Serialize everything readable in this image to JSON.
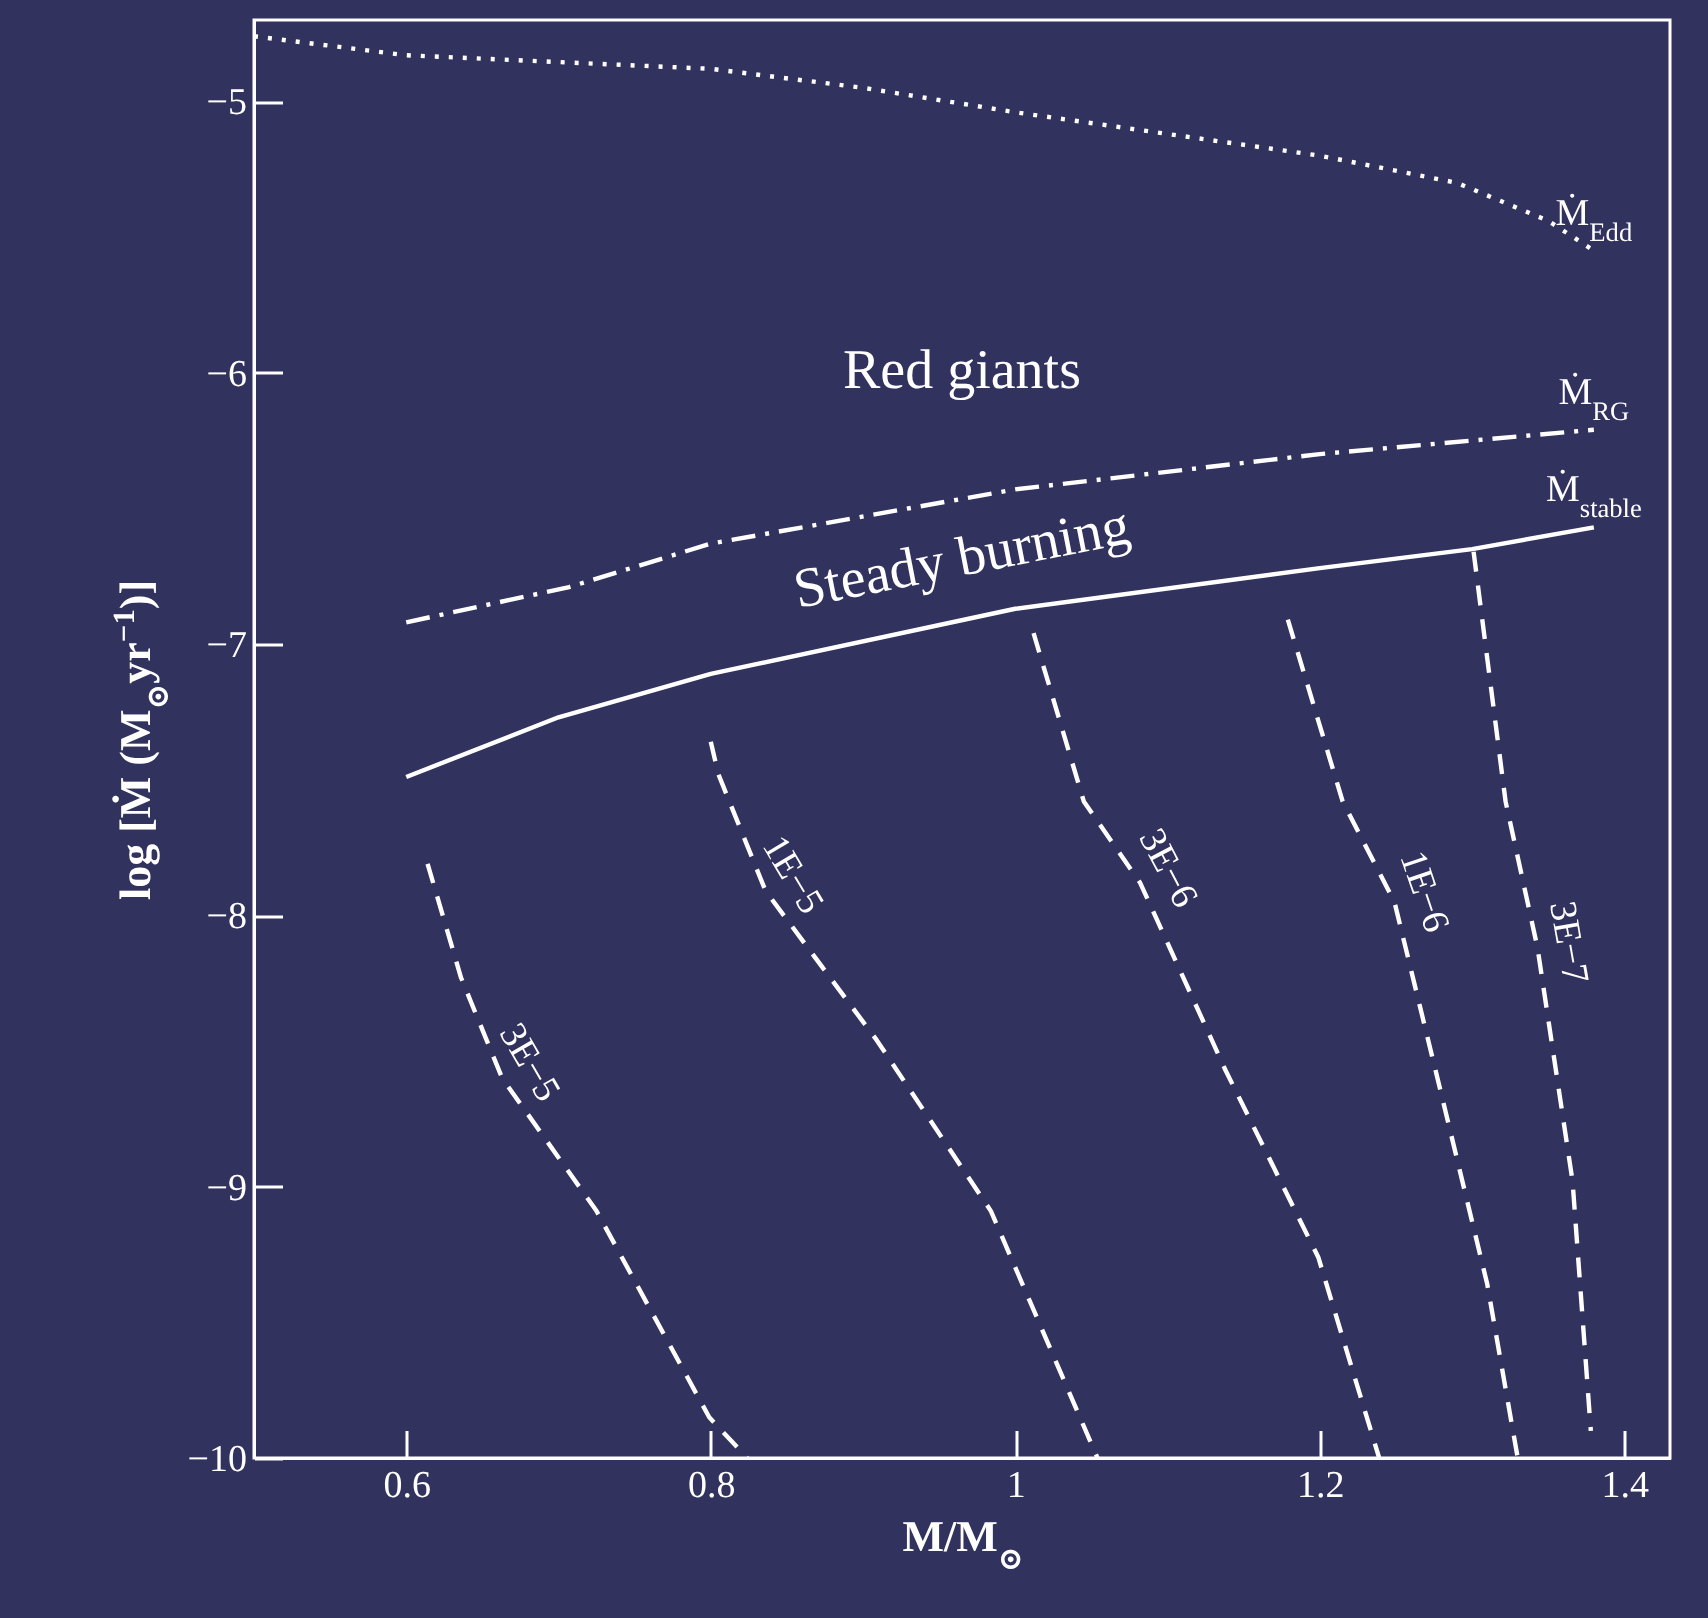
{
  "chart_data": {
    "type": "line",
    "xlabel": "M/M$_{⊙}$",
    "ylabel": "log [Ṁ (M$_{⊙}$yr$^{−1}$)]",
    "xlim": [
      0.5,
      1.43
    ],
    "ylim": [
      -10,
      -4.7
    ],
    "xticks": [
      0.6,
      0.8,
      1,
      1.2,
      1.4
    ],
    "yticks": [
      -10,
      -9,
      -8,
      -7,
      -6,
      -5
    ],
    "annotations": [
      "Red giants",
      "Steady burning"
    ],
    "series": [
      {
        "name": "Ṁ$_{Edd}$",
        "color": "#ffffff",
        "line_style": "dotted",
        "x": [
          0.5,
          0.6,
          0.8,
          0.9,
          1.0,
          1.1,
          1.2,
          1.29,
          1.35,
          1.38
        ],
        "values": [
          -4.76,
          -4.83,
          -4.88,
          -4.95,
          -5.04,
          -5.12,
          -5.2,
          -5.3,
          -5.44,
          -5.55
        ]
      },
      {
        "name": "Ṁ$_{RG}$",
        "color": "#ffffff",
        "line_style": "dashdot",
        "x": [
          0.6,
          0.707,
          0.8,
          1.0,
          1.2,
          1.38
        ],
        "values": [
          -6.92,
          -6.79,
          -6.63,
          -6.43,
          -6.3,
          -6.21
        ]
      },
      {
        "name": "Ṁ$_{stable}$",
        "color": "#ffffff",
        "line_style": "solid",
        "x": [
          0.6,
          0.7,
          0.8,
          1.0,
          1.2,
          1.3,
          1.38
        ],
        "values": [
          -7.49,
          -7.27,
          -7.11,
          -6.87,
          -6.72,
          -6.65,
          -6.57
        ]
      },
      {
        "name": "3E−5",
        "color": "#ffffff",
        "line_style": "dashed",
        "x": [
          0.614,
          0.636,
          0.663,
          0.725,
          0.799,
          0.824
        ],
        "values": [
          -7.81,
          -8.23,
          -8.6,
          -9.09,
          -9.85,
          -10
        ]
      },
      {
        "name": "1E−5",
        "color": "#ffffff",
        "line_style": "dashed",
        "x": [
          0.8,
          0.805,
          0.836,
          0.909,
          0.984,
          1.054
        ],
        "values": [
          -7.36,
          -7.48,
          -7.91,
          -8.46,
          -9.09,
          -10
        ]
      },
      {
        "name": "3E−6",
        "color": "#ffffff",
        "line_style": "dashed",
        "x": [
          1.012,
          1.045,
          1.082,
          1.138,
          1.199,
          1.239
        ],
        "values": [
          -6.96,
          -7.58,
          -7.88,
          -8.57,
          -9.26,
          -10
        ]
      },
      {
        "name": "1E−6",
        "color": "#ffffff",
        "line_style": "dashed",
        "x": [
          1.179,
          1.215,
          1.249,
          1.279,
          1.31,
          1.33
        ],
        "values": [
          -6.91,
          -7.58,
          -7.95,
          -8.64,
          -9.36,
          -10
        ]
      },
      {
        "name": "3E−7",
        "color": "#ffffff",
        "line_style": "dashed",
        "x": [
          1.301,
          1.322,
          1.343,
          1.366,
          1.378
        ],
        "values": [
          -6.66,
          -7.58,
          -8.12,
          -8.98,
          -9.9
        ]
      }
    ]
  }
}
